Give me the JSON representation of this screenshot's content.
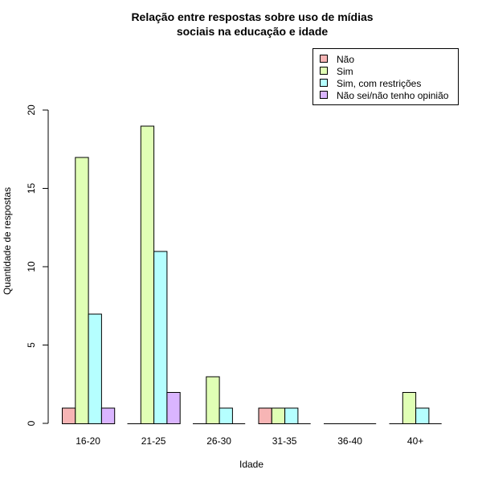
{
  "chart_data": {
    "type": "bar",
    "title_line1": "Relação entre respostas sobre uso de mídias",
    "title_line2": "sociais na educação e idade",
    "xlabel": "Idade",
    "ylabel": "Quantidade de respostas",
    "categories": [
      "16-20",
      "21-25",
      "26-30",
      "31-35",
      "36-40",
      "40+"
    ],
    "ylim": [
      0,
      20
    ],
    "yticks": [
      0,
      5,
      10,
      15,
      20
    ],
    "legend_position": "top-right",
    "series": [
      {
        "name": "Não",
        "color": "#F7B5B5",
        "values": [
          1,
          0,
          0,
          1,
          0,
          0
        ]
      },
      {
        "name": "Sim",
        "color": "#E0FFB5",
        "values": [
          17,
          19,
          3,
          1,
          0,
          2
        ]
      },
      {
        "name": "Sim, com restrições",
        "color": "#B5FFFF",
        "values": [
          7,
          11,
          1,
          1,
          0,
          1
        ]
      },
      {
        "name": "Não sei/não tenho opinião",
        "color": "#DAB5FF",
        "values": [
          1,
          2,
          0,
          0,
          0,
          0
        ]
      }
    ]
  }
}
